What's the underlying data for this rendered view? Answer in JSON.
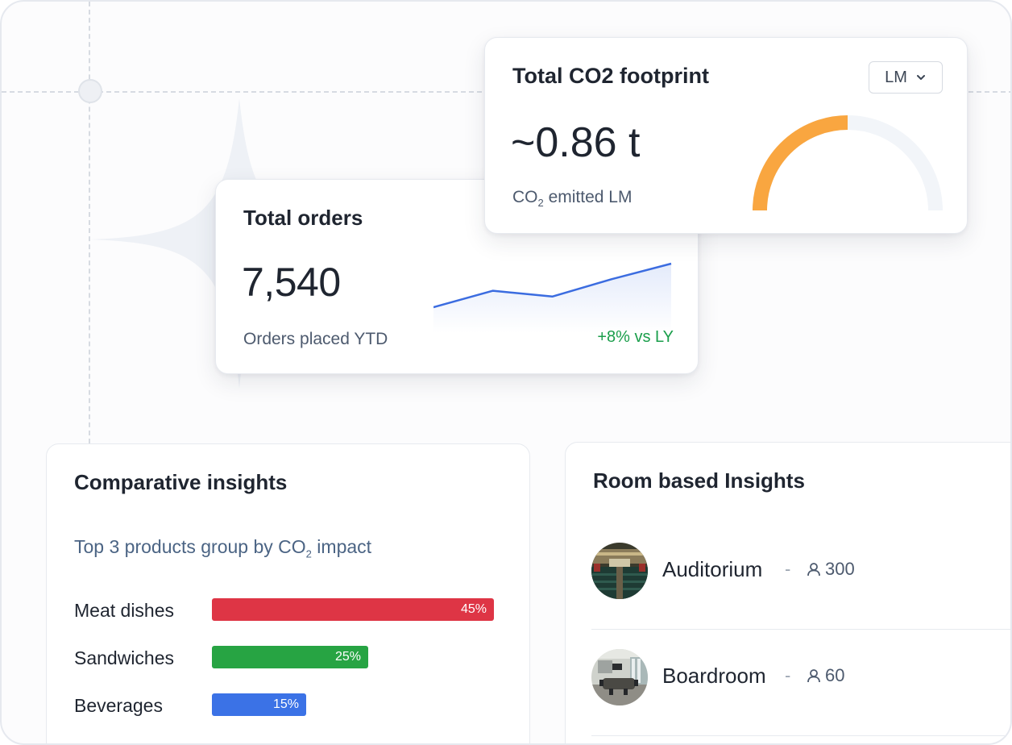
{
  "orders_card": {
    "title": "Total orders",
    "value": "7,540",
    "subtitle": "Orders placed YTD",
    "delta": "+8% vs LY",
    "delta_color": "#1a9e4b",
    "trend": [
      2,
      3.7,
      3.1,
      4.9,
      6.5
    ]
  },
  "co2_card": {
    "title": "Total CO2 footprint",
    "value": "~0.86 t",
    "subtitle_prefix": "CO",
    "subtitle_sub": "2",
    "subtitle_suffix": " emitted LM",
    "period_select": "LM",
    "gauge_fraction": 0.5,
    "gauge_color": "#f9a640"
  },
  "compare_card": {
    "title": "Comparative insights",
    "subtitle_prefix": "Top 3 products group by CO",
    "subtitle_sub": "2",
    "subtitle_suffix": " impact",
    "bars": [
      {
        "label": "Meat dishes",
        "value_label": "45%",
        "value": 45,
        "color": "#de3545"
      },
      {
        "label": "Sandwiches",
        "value_label": "25%",
        "value": 25,
        "color": "#27a443"
      },
      {
        "label": "Beverages",
        "value_label": "15%",
        "value": 15,
        "color": "#3b72e6"
      }
    ]
  },
  "rooms_card": {
    "title": "Room based Insights",
    "rooms": [
      {
        "name": "Auditorium",
        "separator": "-",
        "capacity": "300"
      },
      {
        "name": "Boardroom",
        "separator": "-",
        "capacity": "60"
      }
    ]
  }
}
